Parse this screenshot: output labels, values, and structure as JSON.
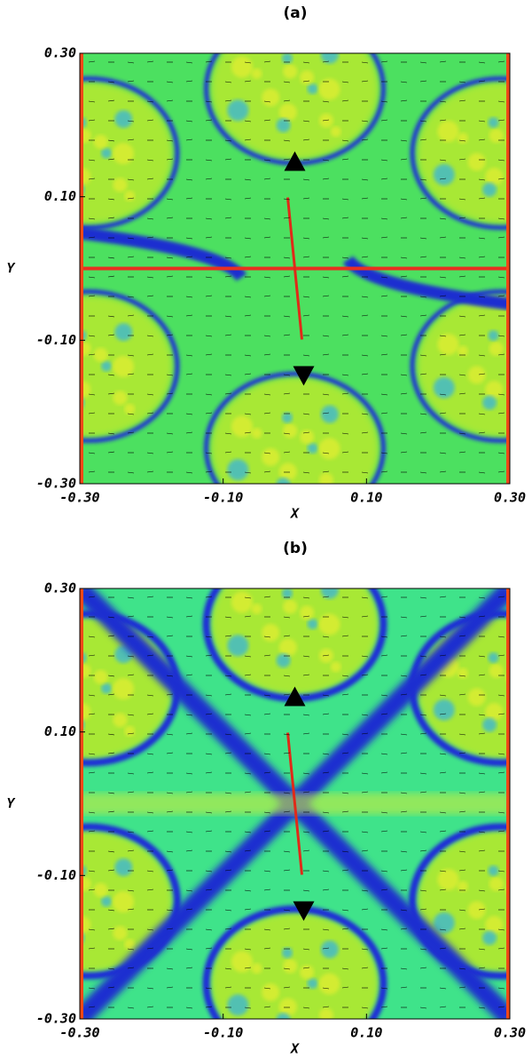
{
  "chart_data": [
    {
      "type": "image",
      "title": "(a)",
      "xlabel": "X",
      "ylabel": "Y",
      "xlim": [
        -0.3,
        0.3
      ],
      "ylim": [
        -0.3,
        0.3
      ],
      "xticks": [
        {
          "value": -0.3,
          "label": "-0.30"
        },
        {
          "value": -0.1,
          "label": "-0.10"
        },
        {
          "value": 0.1,
          "label": "0.10"
        },
        {
          "value": 0.3,
          "label": "0.30"
        }
      ],
      "yticks": [
        {
          "value": -0.3,
          "label": "-0.30"
        },
        {
          "value": -0.1,
          "label": "-0.10"
        },
        {
          "value": 0.1,
          "label": "0.10"
        },
        {
          "value": 0.3,
          "label": "0.30"
        }
      ]
    },
    {
      "type": "image",
      "title": "(b)",
      "xlabel": "X",
      "ylabel": "Y",
      "xlim": [
        -0.3,
        0.3
      ],
      "ylim": [
        -0.3,
        0.3
      ],
      "xticks": [
        {
          "value": -0.3,
          "label": "-0.30"
        },
        {
          "value": -0.1,
          "label": "-0.10"
        },
        {
          "value": 0.1,
          "label": "0.10"
        },
        {
          "value": 0.3,
          "label": "0.30"
        }
      ],
      "yticks": [
        {
          "value": -0.3,
          "label": "-0.30"
        },
        {
          "value": -0.1,
          "label": "-0.10"
        },
        {
          "value": 0.1,
          "label": "0.10"
        },
        {
          "value": 0.3,
          "label": "0.30"
        }
      ]
    }
  ]
}
